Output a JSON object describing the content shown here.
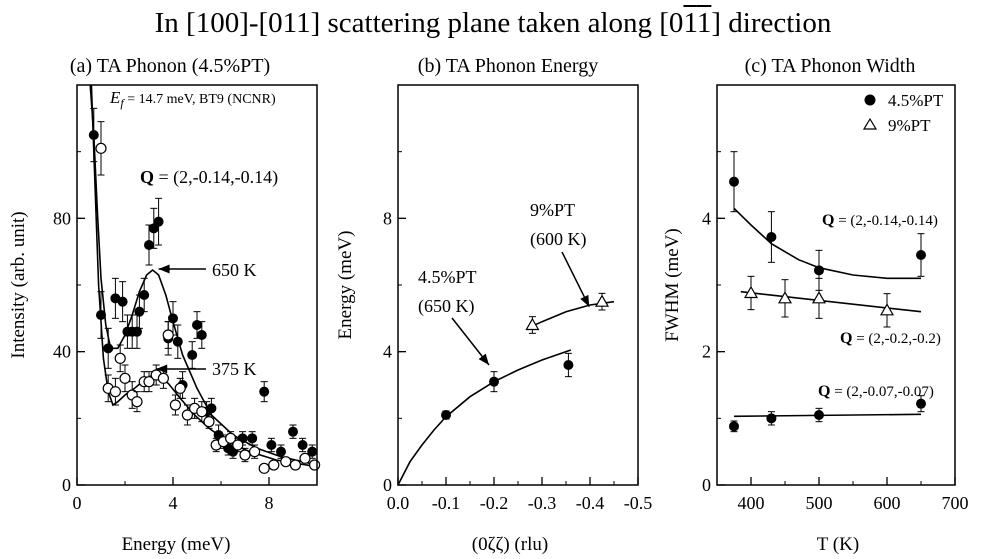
{
  "figure": {
    "title_prefix": "In [100]-[011] scattering plane taken along [0",
    "title_bar1": "1",
    "title_bar2": "1",
    "title_suffix": "] direction"
  },
  "chart_data": [
    {
      "type": "scatter",
      "title": "(a) TA Phonon (4.5%PT)",
      "xlabel": "Energy (meV)",
      "ylabel": "Intensity (arb. unit)",
      "xlim": [
        0,
        10
      ],
      "ylim": [
        0,
        120
      ],
      "xticks": [
        0,
        4,
        8
      ],
      "yticks": [
        0,
        40,
        80
      ],
      "annotations": {
        "instrument_E": "E",
        "instrument_sub": "f",
        "instrument_rest": " = 14.7 meV, BT9 (NCNR)",
        "q_bold": "Q",
        "q_rest": " = (2,-0.14,-0.14)",
        "label_650": "650 K",
        "label_375": "375 K"
      },
      "series": [
        {
          "name": "650 K",
          "marker": "filled-circle",
          "points": [
            [
              0.7,
              105,
              8
            ],
            [
              1.0,
              51,
              7
            ],
            [
              1.3,
              41,
              6
            ],
            [
              1.6,
              56,
              6
            ],
            [
              1.9,
              55,
              6
            ],
            [
              2.1,
              46,
              5
            ],
            [
              2.3,
              46,
              5
            ],
            [
              2.5,
              46,
              5
            ],
            [
              2.6,
              52,
              5
            ],
            [
              2.8,
              57,
              5
            ],
            [
              3.0,
              72,
              6
            ],
            [
              3.2,
              77,
              6
            ],
            [
              3.4,
              79,
              7
            ],
            [
              3.8,
              44,
              5
            ],
            [
              4.0,
              50,
              5
            ],
            [
              4.2,
              43,
              5
            ],
            [
              4.4,
              30,
              4
            ],
            [
              4.8,
              39,
              4
            ],
            [
              5.0,
              48,
              4
            ],
            [
              5.2,
              45,
              4
            ],
            [
              5.4,
              22,
              3
            ],
            [
              5.6,
              23,
              3
            ],
            [
              5.9,
              15,
              3
            ],
            [
              6.3,
              11,
              2
            ],
            [
              6.5,
              10,
              2
            ],
            [
              6.9,
              14,
              2
            ],
            [
              7.3,
              14,
              2
            ],
            [
              7.8,
              28,
              3
            ],
            [
              8.1,
              12,
              2
            ],
            [
              8.5,
              10,
              2
            ],
            [
              9.0,
              16,
              2
            ],
            [
              9.4,
              12,
              2
            ],
            [
              9.8,
              10,
              2
            ]
          ]
        },
        {
          "name": "375 K",
          "marker": "open-circle",
          "points": [
            [
              1.0,
              101,
              8
            ],
            [
              1.3,
              29,
              4
            ],
            [
              1.6,
              28,
              4
            ],
            [
              1.8,
              38,
              4
            ],
            [
              2.0,
              32,
              4
            ],
            [
              2.3,
              27,
              4
            ],
            [
              2.5,
              25,
              3
            ],
            [
              2.8,
              31,
              3
            ],
            [
              3.0,
              31,
              3
            ],
            [
              3.3,
              33,
              3
            ],
            [
              3.6,
              32,
              3
            ],
            [
              3.8,
              45,
              4
            ],
            [
              4.1,
              24,
              3
            ],
            [
              4.3,
              29,
              3
            ],
            [
              4.6,
              21,
              3
            ],
            [
              4.9,
              23,
              3
            ],
            [
              5.2,
              22,
              3
            ],
            [
              5.5,
              19,
              2
            ],
            [
              5.8,
              12,
              2
            ],
            [
              6.1,
              13,
              2
            ],
            [
              6.4,
              14,
              2
            ],
            [
              6.7,
              12,
              2
            ],
            [
              7.0,
              9,
              2
            ],
            [
              7.4,
              10,
              2
            ],
            [
              7.8,
              5,
              1
            ],
            [
              8.2,
              6,
              1
            ],
            [
              8.7,
              7,
              1
            ],
            [
              9.1,
              6,
              1
            ],
            [
              9.5,
              8,
              1
            ],
            [
              9.9,
              6,
              1
            ]
          ]
        }
      ],
      "fits": [
        {
          "name": "650 K",
          "points": [
            [
              0.55,
              122
            ],
            [
              0.7,
              105
            ],
            [
              0.85,
              82
            ],
            [
              1.0,
              62
            ],
            [
              1.2,
              48
            ],
            [
              1.4,
              41
            ],
            [
              1.7,
              41
            ],
            [
              2.0,
              45
            ],
            [
              2.3,
              51
            ],
            [
              2.6,
              58
            ],
            [
              2.9,
              63
            ],
            [
              3.15,
              64.5
            ],
            [
              3.4,
              63
            ],
            [
              3.7,
              57
            ],
            [
              4.0,
              49
            ],
            [
              4.4,
              39
            ],
            [
              5.0,
              29
            ],
            [
              5.6,
              21
            ],
            [
              6.5,
              15
            ],
            [
              7.5,
              11
            ],
            [
              8.5,
              8.5
            ],
            [
              10,
              6
            ]
          ]
        },
        {
          "name": "375 K",
          "points": [
            [
              0.6,
              122
            ],
            [
              0.75,
              90
            ],
            [
              0.9,
              60
            ],
            [
              1.1,
              38
            ],
            [
              1.3,
              28
            ],
            [
              1.5,
              24
            ],
            [
              1.7,
              25
            ],
            [
              2.0,
              27
            ],
            [
              2.4,
              29
            ],
            [
              2.8,
              31.5
            ],
            [
              3.1,
              32.8
            ],
            [
              3.4,
              32.5
            ],
            [
              3.8,
              30.5
            ],
            [
              4.3,
              26
            ],
            [
              4.9,
              21
            ],
            [
              5.5,
              17
            ],
            [
              6.3,
              13
            ],
            [
              7.2,
              10
            ],
            [
              8.3,
              7.5
            ],
            [
              10,
              5.5
            ]
          ]
        }
      ]
    },
    {
      "type": "scatter",
      "title": "(b) TA Phonon Energy",
      "xlabel": "(0ζζ) (rlu)",
      "ylabel": "Energy (meV)",
      "xlim": [
        0.0,
        -0.5
      ],
      "ylim": [
        0,
        12
      ],
      "xticks": [
        0.0,
        -0.1,
        -0.2,
        -0.3,
        -0.4,
        -0.5
      ],
      "xtick_labels": [
        "0.0",
        "-0.1",
        "-0.2",
        "-0.3",
        "-0.4",
        "-0.5"
      ],
      "yticks": [
        0,
        4,
        8
      ],
      "annotations": {
        "label_45a": "4.5%PT",
        "label_45b": "(650 K)",
        "label_9a": "9%PT",
        "label_9b": "(600 K)"
      },
      "series": [
        {
          "name": "4.5%PT (650 K)",
          "marker": "filled-circle",
          "points": [
            [
              -0.1,
              2.1,
              0.12
            ],
            [
              -0.2,
              3.1,
              0.3
            ],
            [
              -0.355,
              3.6,
              0.35
            ]
          ]
        },
        {
          "name": "9%PT (600 K)",
          "marker": "open-triangle",
          "points": [
            [
              -0.28,
              4.8,
              0.25
            ],
            [
              -0.425,
              5.5,
              0.25
            ]
          ]
        }
      ],
      "fits": [
        {
          "name": "4.5%PT (650 K)",
          "points": [
            [
              0.0,
              0.0
            ],
            [
              -0.025,
              0.7
            ],
            [
              -0.05,
              1.2
            ],
            [
              -0.075,
              1.65
            ],
            [
              -0.1,
              2.05
            ],
            [
              -0.15,
              2.65
            ],
            [
              -0.2,
              3.1
            ],
            [
              -0.25,
              3.45
            ],
            [
              -0.3,
              3.75
            ],
            [
              -0.36,
              4.05
            ]
          ]
        },
        {
          "name": "9%PT (600 K)",
          "points": [
            [
              -0.27,
              4.7
            ],
            [
              -0.3,
              4.9
            ],
            [
              -0.35,
              5.2
            ],
            [
              -0.4,
              5.4
            ],
            [
              -0.45,
              5.5
            ]
          ]
        }
      ]
    },
    {
      "type": "scatter",
      "title": "(c) TA Phonon Width",
      "xlabel": "T (K)",
      "ylabel": "FWHM (meV)",
      "xlim": [
        350,
        700
      ],
      "ylim": [
        0,
        6
      ],
      "xticks": [
        400,
        500,
        600,
        700
      ],
      "yticks": [
        0,
        2,
        4
      ],
      "legend_position": "top-right",
      "legend": [
        "4.5%PT",
        "9%PT"
      ],
      "annotations": {
        "q1_bold": "Q",
        "q1_rest": " = (2,-0.14,-0.14)",
        "q2_bold": "Q",
        "q2_rest": " = (2,-0.2,-0.2)",
        "q3_bold": "Q",
        "q3_rest": " = (2,-0.07,-0.07)"
      },
      "series": [
        {
          "name": "4.5%PT",
          "marker": "filled-circle",
          "group": "(2,-0.14,-0.14)",
          "points": [
            [
              375,
              4.55,
              0.45
            ],
            [
              430,
              3.72,
              0.38
            ],
            [
              500,
              3.22,
              0.3
            ],
            [
              650,
              3.45,
              0.32
            ]
          ]
        },
        {
          "name": "9%PT",
          "marker": "open-triangle",
          "group": "(2,-0.2,-0.2)",
          "points": [
            [
              400,
              2.88,
              0.25
            ],
            [
              450,
              2.8,
              0.28
            ],
            [
              500,
              2.8,
              0.3
            ],
            [
              600,
              2.62,
              0.25
            ]
          ]
        },
        {
          "name": "4.5%PT",
          "marker": "filled-circle",
          "group": "(2,-0.07,-0.07)",
          "points": [
            [
              375,
              0.88,
              0.08
            ],
            [
              430,
              1.0,
              0.1
            ],
            [
              500,
              1.05,
              0.1
            ],
            [
              650,
              1.22,
              0.12
            ]
          ]
        }
      ],
      "fits": [
        {
          "group": "(2,-0.14,-0.14)",
          "points": [
            [
              375,
              4.15
            ],
            [
              400,
              3.9
            ],
            [
              430,
              3.62
            ],
            [
              470,
              3.38
            ],
            [
              500,
              3.26
            ],
            [
              550,
              3.15
            ],
            [
              600,
              3.1
            ],
            [
              650,
              3.1
            ]
          ]
        },
        {
          "group": "(2,-0.2,-0.2)",
          "points": [
            [
              385,
              2.9
            ],
            [
              650,
              2.6
            ]
          ]
        },
        {
          "group": "(2,-0.07,-0.07)",
          "points": [
            [
              375,
              1.03
            ],
            [
              650,
              1.06
            ]
          ]
        }
      ]
    }
  ]
}
